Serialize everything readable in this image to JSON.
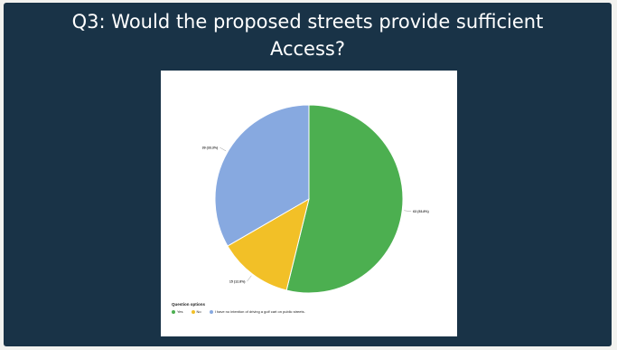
{
  "slide": {
    "title_line1": "Q3: Would the proposed streets provide sufficient",
    "title_line2": "Access?"
  },
  "chart_data": {
    "type": "pie",
    "slices": [
      {
        "label": "Yes",
        "count": 63,
        "percent": 53.8,
        "data_label": "63 (53.8%)",
        "color": "#4caf50"
      },
      {
        "label": "No",
        "count": 15,
        "percent": 12.8,
        "data_label": "15 (12.8%)",
        "color": "#f2c027"
      },
      {
        "label": "I have no intention of driving a golf cart on public streets.",
        "count": 39,
        "percent": 33.3,
        "data_label": "39 (33.3%)",
        "color": "#87a9e0"
      }
    ],
    "legend_title": "Question options",
    "legend_position": "bottom-left"
  }
}
